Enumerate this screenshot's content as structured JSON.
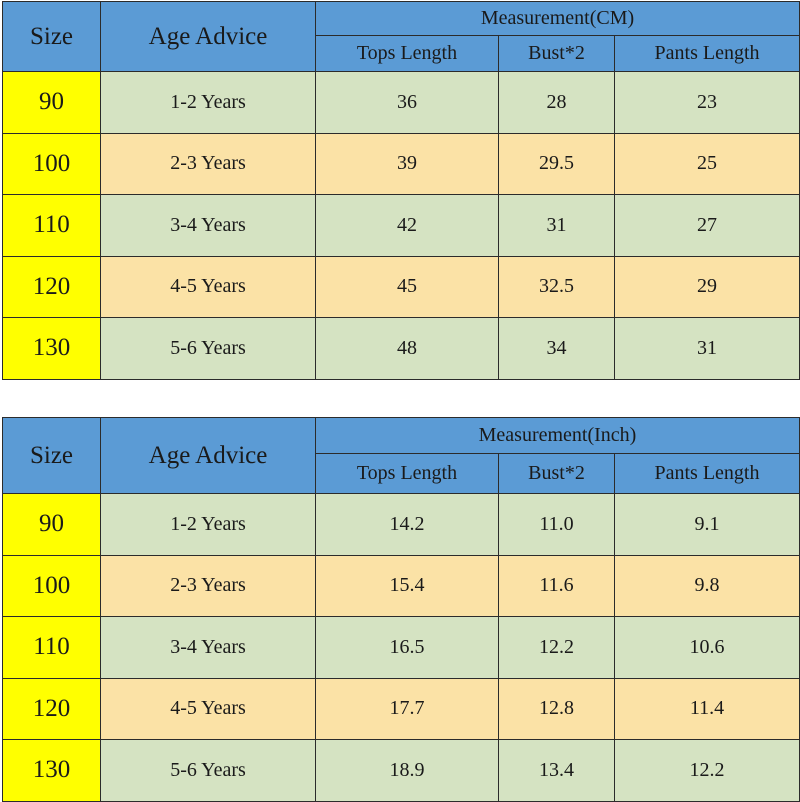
{
  "tables": [
    {
      "measurement_label": "Measurement(CM)",
      "headers": {
        "size": "Size",
        "age": "Age Advice",
        "tops": "Tops Length",
        "bust": "Bust*2",
        "pants": "Pants Length"
      },
      "rows": [
        {
          "size": "90",
          "age": "1-2 Years",
          "tops": "36",
          "bust": "28",
          "pants": "23"
        },
        {
          "size": "100",
          "age": "2-3 Years",
          "tops": "39",
          "bust": "29.5",
          "pants": "25"
        },
        {
          "size": "110",
          "age": "3-4 Years",
          "tops": "42",
          "bust": "31",
          "pants": "27"
        },
        {
          "size": "120",
          "age": "4-5 Years",
          "tops": "45",
          "bust": "32.5",
          "pants": "29"
        },
        {
          "size": "130",
          "age": "5-6 Years",
          "tops": "48",
          "bust": "34",
          "pants": "31"
        }
      ]
    },
    {
      "measurement_label": "Measurement(Inch)",
      "headers": {
        "size": "Size",
        "age": "Age Advice",
        "tops": "Tops Length",
        "bust": "Bust*2",
        "pants": "Pants Length"
      },
      "rows": [
        {
          "size": "90",
          "age": "1-2 Years",
          "tops": "14.2",
          "bust": "11.0",
          "pants": "9.1"
        },
        {
          "size": "100",
          "age": "2-3 Years",
          "tops": "15.4",
          "bust": "11.6",
          "pants": "9.8"
        },
        {
          "size": "110",
          "age": "3-4 Years",
          "tops": "16.5",
          "bust": "12.2",
          "pants": "10.6"
        },
        {
          "size": "120",
          "age": "4-5 Years",
          "tops": "17.7",
          "bust": "12.8",
          "pants": "11.4"
        },
        {
          "size": "130",
          "age": "5-6 Years",
          "tops": "18.9",
          "bust": "13.4",
          "pants": "12.2"
        }
      ]
    }
  ],
  "colors": {
    "header_blue": "#5b9bd5",
    "size_yellow": "#ffff00",
    "row_green": "#d5e3c2",
    "row_orange": "#fbe2a6"
  }
}
